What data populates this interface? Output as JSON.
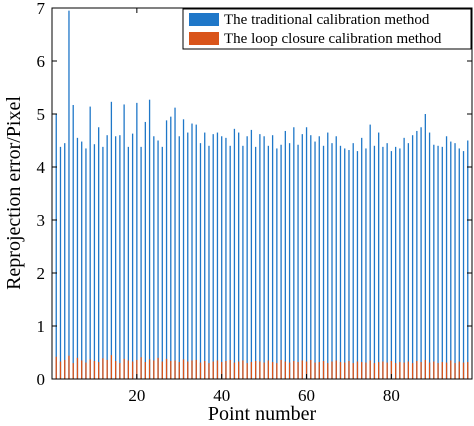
{
  "chart_data": {
    "type": "bar",
    "xlabel": "Point number",
    "ylabel": "Reprojection error/Pixel",
    "xlim": [
      0,
      99
    ],
    "ylim": [
      0,
      7
    ],
    "xticks": [
      20,
      40,
      60,
      80
    ],
    "yticks": [
      0,
      1,
      2,
      3,
      4,
      5,
      6,
      7
    ],
    "grid": false,
    "legend_position": "top-right",
    "x": [
      1,
      2,
      3,
      4,
      5,
      6,
      7,
      8,
      9,
      10,
      11,
      12,
      13,
      14,
      15,
      16,
      17,
      18,
      19,
      20,
      21,
      22,
      23,
      24,
      25,
      26,
      27,
      28,
      29,
      30,
      31,
      32,
      33,
      34,
      35,
      36,
      37,
      38,
      39,
      40,
      41,
      42,
      43,
      44,
      45,
      46,
      47,
      48,
      49,
      50,
      51,
      52,
      53,
      54,
      55,
      56,
      57,
      58,
      59,
      60,
      61,
      62,
      63,
      64,
      65,
      66,
      67,
      68,
      69,
      70,
      71,
      72,
      73,
      74,
      75,
      76,
      77,
      78,
      79,
      80,
      81,
      82,
      83,
      84,
      85,
      86,
      87,
      88,
      89,
      90,
      91,
      92,
      93,
      94,
      95,
      96,
      97,
      98
    ],
    "series": [
      {
        "name": "The traditional calibration method",
        "color": "#1f77c8",
        "values": [
          5.0,
          4.38,
          4.45,
          6.95,
          5.17,
          4.55,
          4.48,
          4.35,
          5.14,
          4.43,
          4.75,
          4.38,
          4.6,
          5.23,
          4.58,
          4.6,
          5.18,
          4.38,
          4.63,
          5.21,
          4.38,
          4.85,
          5.27,
          4.58,
          4.5,
          4.38,
          4.88,
          4.95,
          5.12,
          4.58,
          4.9,
          4.65,
          4.82,
          4.8,
          4.45,
          4.65,
          4.4,
          4.62,
          4.65,
          4.58,
          4.55,
          4.4,
          4.72,
          4.65,
          4.4,
          4.58,
          4.7,
          4.38,
          4.62,
          4.58,
          4.4,
          4.6,
          4.35,
          4.42,
          4.68,
          4.45,
          4.75,
          4.42,
          4.62,
          4.75,
          4.6,
          4.48,
          4.58,
          4.4,
          4.65,
          4.45,
          4.58,
          4.4,
          4.35,
          4.32,
          4.45,
          4.3,
          4.55,
          4.35,
          4.8,
          4.4,
          4.65,
          4.38,
          4.45,
          4.3,
          4.38,
          4.35,
          4.55,
          4.45,
          4.6,
          4.68,
          4.75,
          5.0,
          4.65,
          4.42,
          4.4,
          4.38,
          4.58,
          4.48,
          4.45,
          4.35,
          4.3,
          4.5
        ]
      },
      {
        "name": "The loop closure calibration method",
        "color": "#d9541a",
        "values": [
          0.42,
          0.33,
          0.36,
          0.44,
          0.3,
          0.4,
          0.35,
          0.31,
          0.37,
          0.34,
          0.32,
          0.39,
          0.36,
          0.45,
          0.34,
          0.3,
          0.38,
          0.35,
          0.33,
          0.36,
          0.41,
          0.32,
          0.37,
          0.35,
          0.4,
          0.33,
          0.38,
          0.34,
          0.35,
          0.32,
          0.37,
          0.33,
          0.35,
          0.36,
          0.31,
          0.34,
          0.3,
          0.33,
          0.35,
          0.32,
          0.34,
          0.36,
          0.31,
          0.33,
          0.35,
          0.3,
          0.32,
          0.34,
          0.33,
          0.31,
          0.35,
          0.32,
          0.3,
          0.36,
          0.33,
          0.31,
          0.34,
          0.32,
          0.35,
          0.33,
          0.36,
          0.31,
          0.32,
          0.34,
          0.3,
          0.33,
          0.35,
          0.32,
          0.31,
          0.34,
          0.3,
          0.33,
          0.32,
          0.31,
          0.35,
          0.3,
          0.32,
          0.33,
          0.31,
          0.34,
          0.3,
          0.32,
          0.31,
          0.33,
          0.3,
          0.34,
          0.32,
          0.36,
          0.31,
          0.33,
          0.3,
          0.32,
          0.31,
          0.35,
          0.3,
          0.33,
          0.31,
          0.32
        ]
      }
    ]
  }
}
